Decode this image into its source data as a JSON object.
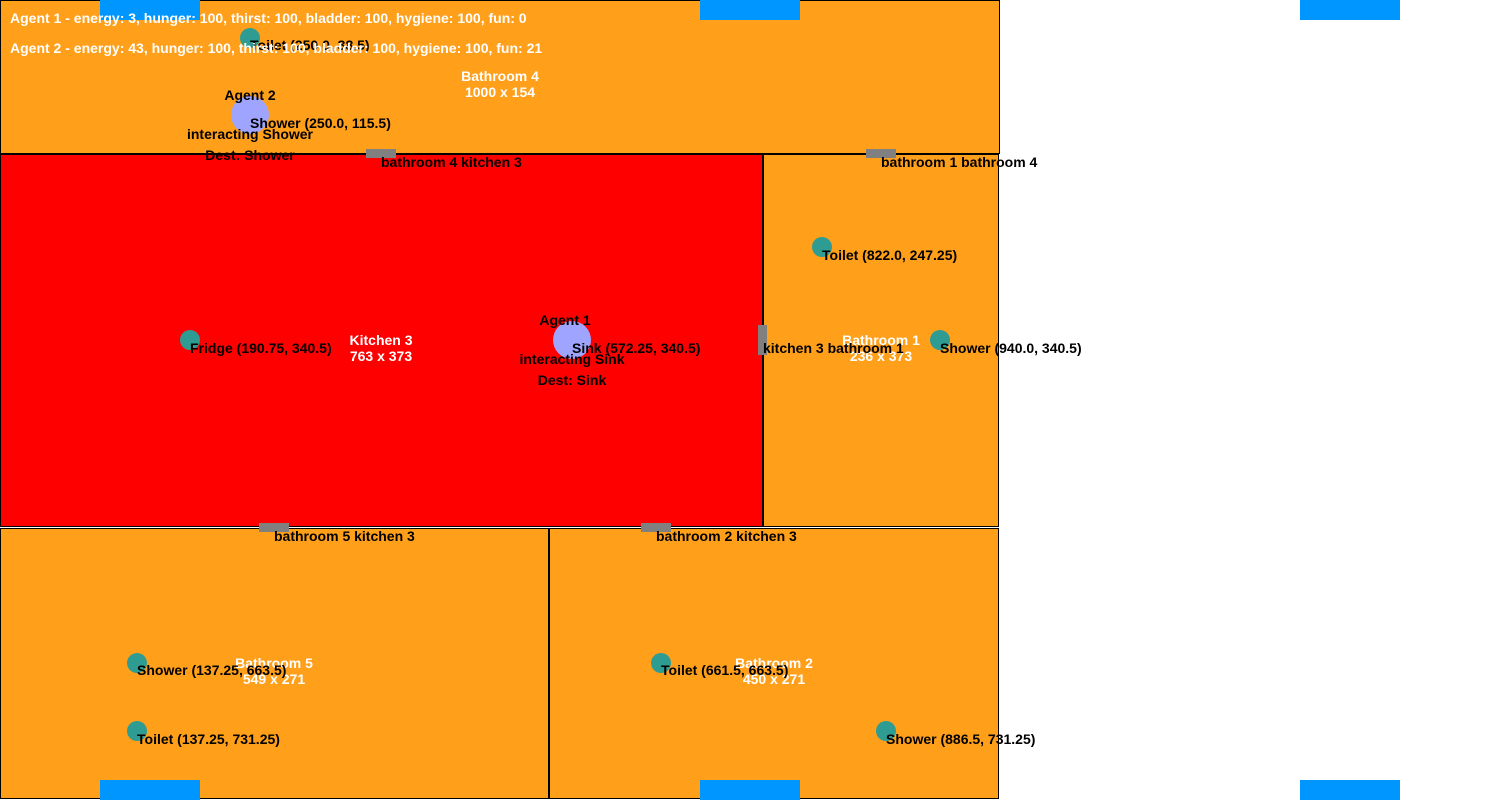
{
  "colors": {
    "bathroom": "#ff9f1a",
    "kitchen": "#ff0000",
    "object": "#2e9c92",
    "agent": "#9fa5ff",
    "door": "#808080",
    "window": "#0096ff"
  },
  "status": {
    "agent1": "Agent 1 - energy: 3, hunger: 100, thirst: 100, bladder: 100, hygiene: 100, fun: 0",
    "agent2": "Agent 2 - energy: 43, hunger: 100, thirst: 100, bladder: 100, hygiene: 100, fun: 21"
  },
  "rooms": {
    "bathroom4": {
      "name": "Bathroom 4",
      "size": "1000 x 154"
    },
    "kitchen3": {
      "name": "Kitchen 3",
      "size": "763 x 373"
    },
    "bathroom1": {
      "name": "Bathroom 1",
      "size": "236 x 373"
    },
    "bathroom5": {
      "name": "Bathroom 5",
      "size": "549 x 271"
    },
    "bathroom2": {
      "name": "Bathroom 2",
      "size": "450 x 271"
    }
  },
  "objects": {
    "b4_toilet": "Toilet (250.0, 38.5)",
    "b4_shower": "Shower (250.0, 115.5)",
    "k3_fridge": "Fridge (190.75, 340.5)",
    "k3_sink": "Sink (572.25, 340.5)",
    "b1_toilet": "Toilet (822.0, 247.25)",
    "b1_shower": "Shower (940.0, 340.5)",
    "b5_shower": "Shower (137.25, 663.5)",
    "b5_toilet": "Toilet (137.25, 731.25)",
    "b2_toilet": "Toilet (661.5, 663.5)",
    "b2_shower": "Shower (886.5, 731.25)"
  },
  "doors": {
    "b4_k3": "bathroom 4 kitchen 3",
    "b1_b4": "bathroom 1 bathroom 4",
    "k3_b1": "kitchen 3 bathroom 1",
    "b5_k3": "bathroom 5 kitchen 3",
    "b2_k3": "bathroom 2 kitchen 3"
  },
  "agents": {
    "agent1": {
      "name": "Agent 1",
      "action": "interacting Sink",
      "dest": "Dest: Sink"
    },
    "agent2": {
      "name": "Agent 2",
      "action": "interacting Shower",
      "dest": "Dest: Shower"
    }
  }
}
